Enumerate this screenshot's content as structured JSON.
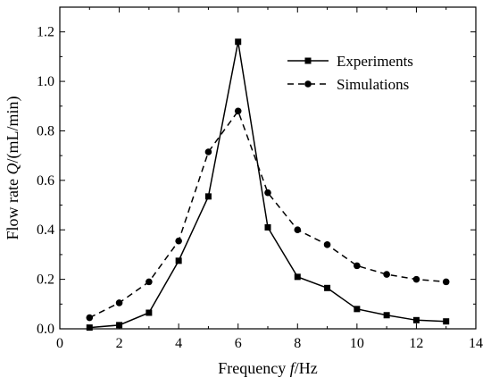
{
  "chart_data": {
    "type": "line",
    "xlabel_parts": [
      "Frequency ",
      "f",
      "/Hz"
    ],
    "ylabel_parts": [
      "Flow rate ",
      "Q",
      "/(mL/min)"
    ],
    "xlim": [
      0,
      14
    ],
    "ylim": [
      0.0,
      1.3
    ],
    "x_ticks": [
      0,
      2,
      4,
      6,
      8,
      10,
      12,
      14
    ],
    "y_ticks": [
      0.0,
      0.2,
      0.4,
      0.6,
      0.8,
      1.0,
      1.2
    ],
    "y_tick_labels": [
      "0.0",
      "0.2",
      "0.4",
      "0.6",
      "0.8",
      "1.0",
      "1.2"
    ],
    "grid": false,
    "legend_position": "top-right",
    "series": [
      {
        "name": "Experiments",
        "line_style": "solid",
        "marker": "square",
        "color": "#000000",
        "x": [
          1,
          2,
          3,
          4,
          5,
          6,
          7,
          8,
          9,
          10,
          11,
          12,
          13
        ],
        "y": [
          0.005,
          0.015,
          0.065,
          0.275,
          0.535,
          1.16,
          0.41,
          0.21,
          0.165,
          0.08,
          0.055,
          0.035,
          0.03
        ]
      },
      {
        "name": "Simulations",
        "line_style": "dashed",
        "marker": "circle",
        "color": "#000000",
        "x": [
          1,
          2,
          3,
          4,
          5,
          6,
          7,
          8,
          9,
          10,
          11,
          12,
          13
        ],
        "y": [
          0.045,
          0.105,
          0.19,
          0.355,
          0.715,
          0.88,
          0.55,
          0.4,
          0.34,
          0.255,
          0.22,
          0.2,
          0.19
        ]
      }
    ]
  }
}
